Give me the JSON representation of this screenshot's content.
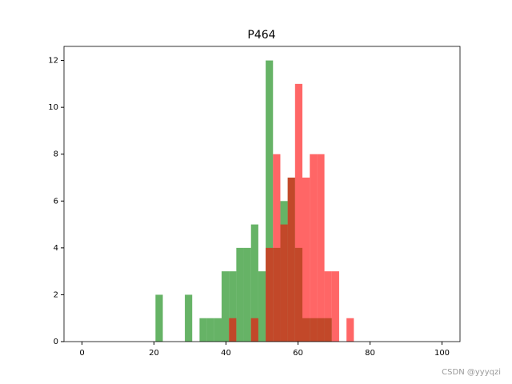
{
  "chart_data": {
    "type": "histogram",
    "title": "P464",
    "bins": [
      0,
      2.04,
      4.08,
      6.12,
      8.16,
      10.2,
      12.24,
      14.29,
      16.33,
      18.37,
      20.41,
      22.45,
      24.49,
      26.53,
      28.57,
      30.61,
      32.65,
      34.69,
      36.73,
      38.78,
      40.82,
      42.86,
      44.9,
      46.94,
      48.98,
      51.02,
      53.06,
      55.1,
      57.14,
      59.18,
      61.22,
      63.27,
      65.31,
      67.35,
      69.39,
      71.43,
      73.47,
      75.51,
      77.55,
      79.59,
      81.63,
      83.67,
      85.71,
      87.76,
      89.8,
      91.84,
      93.88,
      95.92,
      97.96,
      100
    ],
    "series": [
      {
        "color": "#008000",
        "values": [
          0,
          0,
          0,
          0,
          0,
          0,
          0,
          0,
          0,
          0,
          2,
          0,
          0,
          0,
          2,
          0,
          1,
          1,
          1,
          3,
          3,
          4,
          4,
          5,
          3,
          12,
          4,
          6,
          7,
          4,
          1,
          1,
          1,
          1,
          0,
          0,
          0,
          0,
          0,
          0,
          0,
          0,
          0,
          0,
          0,
          0,
          0,
          0,
          0
        ]
      },
      {
        "color": "#ff0000",
        "values": [
          0,
          0,
          0,
          0,
          0,
          0,
          0,
          0,
          0,
          0,
          0,
          0,
          0,
          0,
          0,
          0,
          0,
          0,
          0,
          0,
          1,
          0,
          0,
          1,
          0,
          4,
          8,
          5,
          7,
          11,
          7,
          8,
          8,
          3,
          3,
          0,
          1,
          0,
          0,
          0,
          0,
          0,
          0,
          0,
          0,
          0,
          0,
          0,
          0
        ]
      }
    ],
    "alpha": 0.6,
    "xlim": [
      -5,
      105
    ],
    "ylim": [
      0,
      12.6
    ],
    "xticks": [
      0,
      20,
      40,
      60,
      80,
      100
    ],
    "yticks": [
      0,
      2,
      4,
      6,
      8,
      10,
      12
    ],
    "watermark": "CSDN @yyyqzi"
  }
}
